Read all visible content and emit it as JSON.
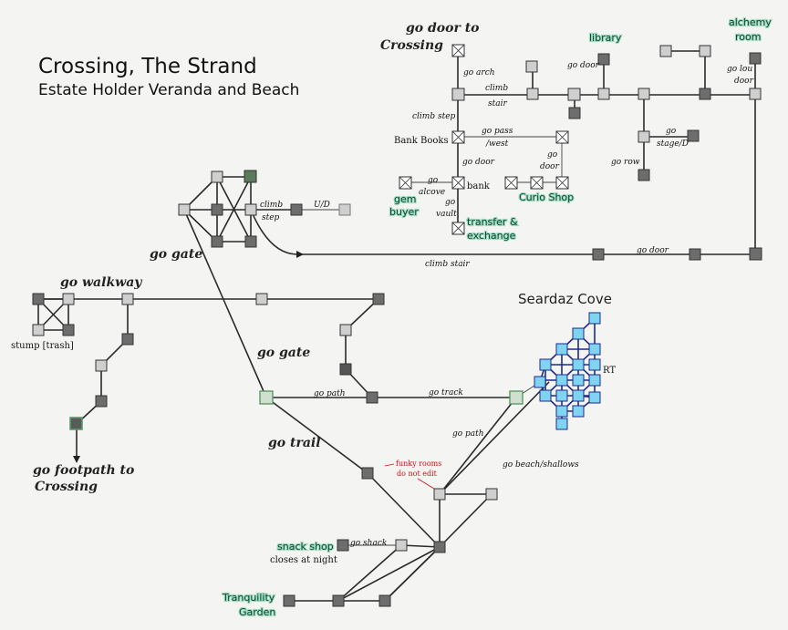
{
  "title": "Crossing, The Strand",
  "subtitle": "Estate Holder Veranda and Beach",
  "colors": {
    "room_dark": "#6d6d6d",
    "room_light": "#cfcfcf",
    "room_cove": "#7fd4f2",
    "room_white": "#ffffff",
    "green_label": "#0b4a32",
    "annotation": "#d01010"
  },
  "labels": {
    "go_door_crossing_1": "go door to",
    "go_door_crossing_2": "Crossing",
    "go_arch": "go arch",
    "climb_stair_top_1": "climb",
    "climb_stair_top_2": "stair",
    "climb_step": "climb step",
    "bank_books": "Bank Books",
    "go_pass_1": "go pass",
    "go_pass_2": "/west",
    "go_door_bank": "go door",
    "go_door_curio_1": "go",
    "go_door_curio_2": "door",
    "go_alcove_1": "go",
    "go_alcove_2": "alcove",
    "go_vault_1": "go",
    "go_vault_2": "vault",
    "bank": "bank",
    "gem_buyer_1": "gem",
    "gem_buyer_2": "buyer",
    "transfer_1": "transfer &",
    "transfer_2": "exchange",
    "curio_shop": "Curio Shop",
    "library": "library",
    "go_door_library": "go door",
    "alchemy_1": "alchemy",
    "alchemy_2": "room",
    "go_lou_door_1": "go lou",
    "go_lou_door_2": "door",
    "go_stage_1": "go",
    "go_stage_2": "stage/D",
    "go_row": "go row",
    "climb_step_left_1": "climb",
    "climb_step_left_2": "step",
    "ud": "U/D",
    "go_gate_top": "go gate",
    "climb_stair_bottom": "climb stair",
    "go_door_right": "go door",
    "go_walkway": "go walkway",
    "stump_trash": "stump [trash]",
    "go_footpath_1": "go footpath to",
    "go_footpath_2": "Crossing",
    "go_gate_mid": "go gate",
    "go_path_mid": "go path",
    "go_track": "go track",
    "seardaz_cove": "Seardaz Cove",
    "rt": "RT",
    "go_trail": "go trail",
    "go_path_diag": "go path",
    "go_beach": "go beach/shallows",
    "funky_1": "funky rooms",
    "funky_2": "do not edit",
    "snack_shop": "snack shop",
    "closes_at_night": "closes at night",
    "go_shack": "go shack",
    "tranquility_1": "Tranquility",
    "tranquility_2": "Garden"
  }
}
